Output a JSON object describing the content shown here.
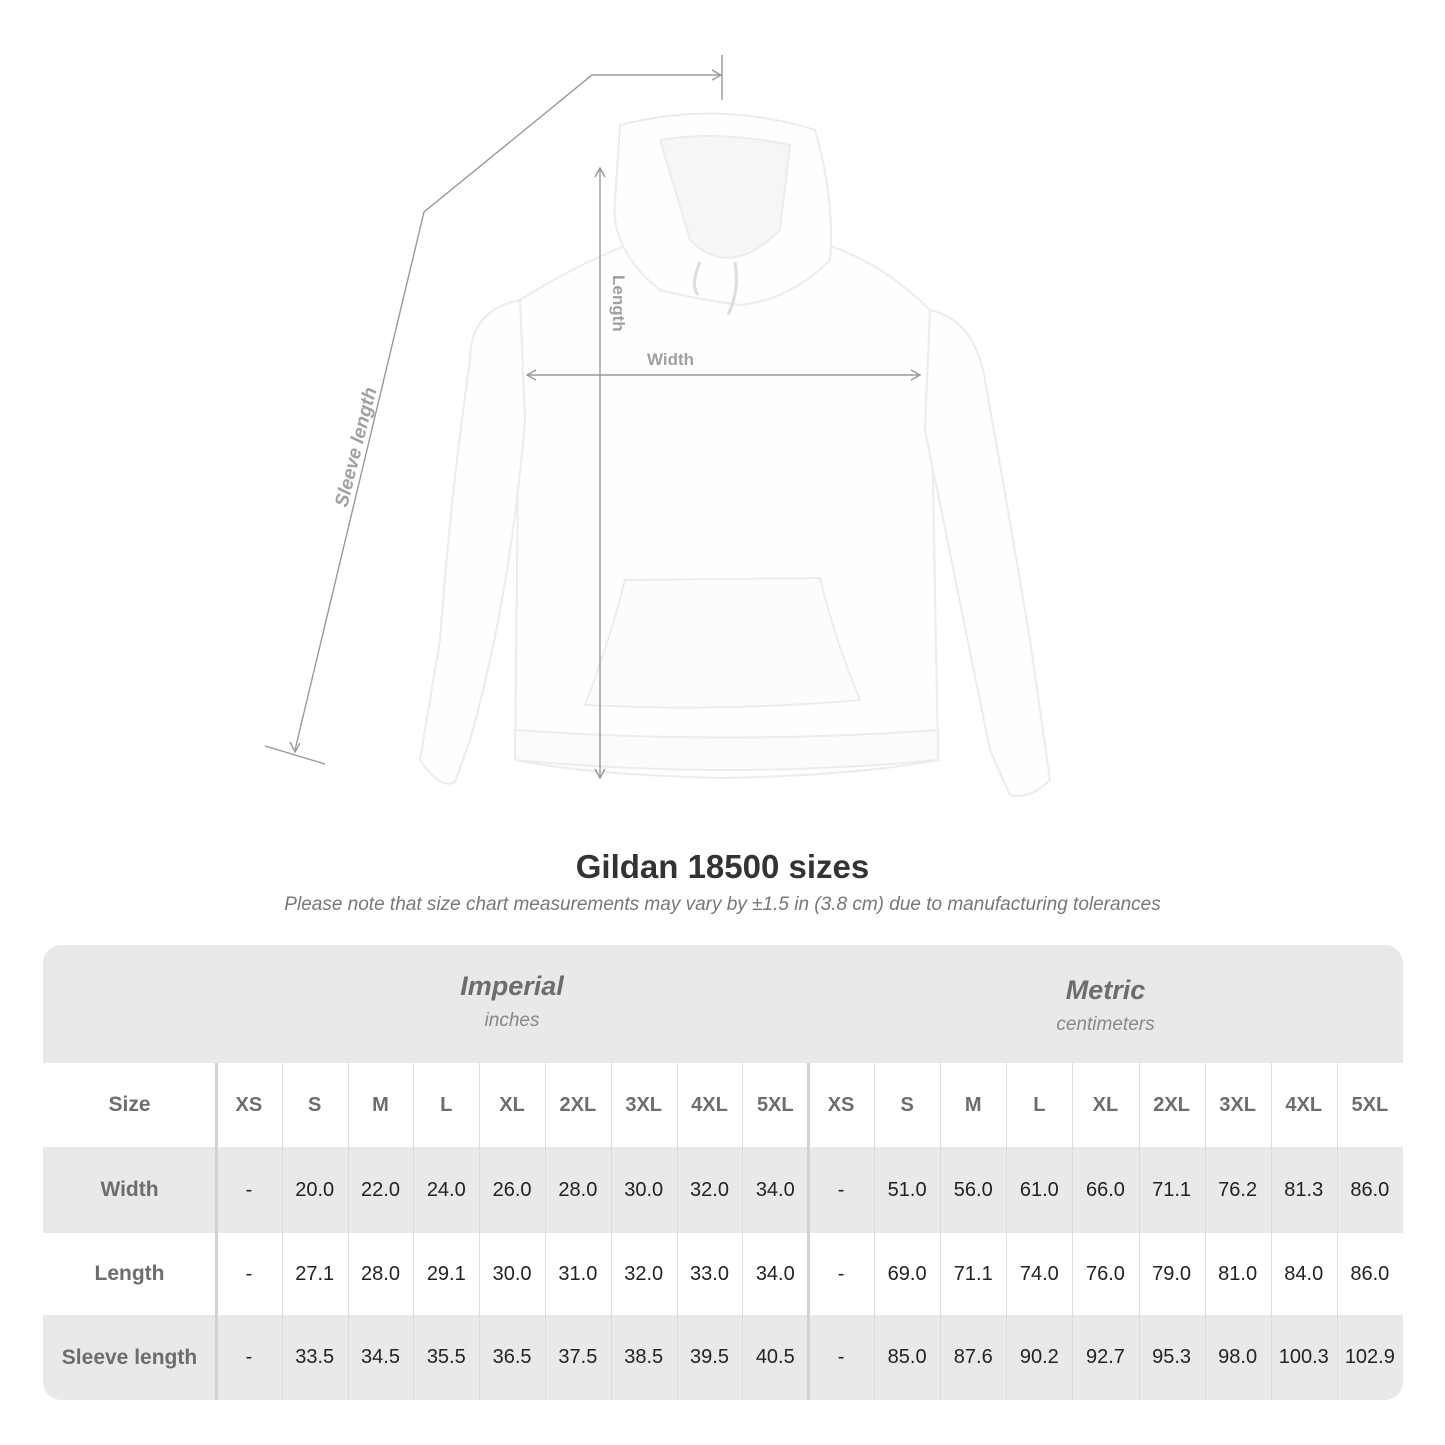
{
  "diagram": {
    "labels": {
      "sleeve": "Sleeve length",
      "length": "Length",
      "width": "Width"
    },
    "line_color": "#999999"
  },
  "title": "Gildan 18500 sizes",
  "note": "Please note that size chart measurements may vary by ±1.5 in (3.8 cm) due to manufacturing tolerances",
  "table": {
    "imperial": {
      "name": "Imperial",
      "unit": "inches"
    },
    "metric": {
      "name": "Metric",
      "unit": "centimeters"
    },
    "size_label": "Size",
    "sizes": [
      "XS",
      "S",
      "M",
      "L",
      "XL",
      "2XL",
      "3XL",
      "4XL",
      "5XL"
    ],
    "rows": [
      {
        "label": "Width",
        "imperial": [
          "-",
          "20.0",
          "22.0",
          "24.0",
          "26.0",
          "28.0",
          "30.0",
          "32.0",
          "34.0"
        ],
        "metric": [
          "-",
          "51.0",
          "56.0",
          "61.0",
          "66.0",
          "71.1",
          "76.2",
          "81.3",
          "86.0"
        ]
      },
      {
        "label": "Length",
        "imperial": [
          "-",
          "27.1",
          "28.0",
          "29.1",
          "30.0",
          "31.0",
          "32.0",
          "33.0",
          "34.0"
        ],
        "metric": [
          "-",
          "69.0",
          "71.1",
          "74.0",
          "76.0",
          "79.0",
          "81.0",
          "84.0",
          "86.0"
        ]
      },
      {
        "label": "Sleeve length",
        "imperial": [
          "-",
          "33.5",
          "34.5",
          "35.5",
          "36.5",
          "37.5",
          "38.5",
          "39.5",
          "40.5"
        ],
        "metric": [
          "-",
          "85.0",
          "87.6",
          "90.2",
          "92.7",
          "95.3",
          "98.0",
          "100.3",
          "102.9"
        ]
      }
    ],
    "band_color": "#e9e9e9"
  }
}
